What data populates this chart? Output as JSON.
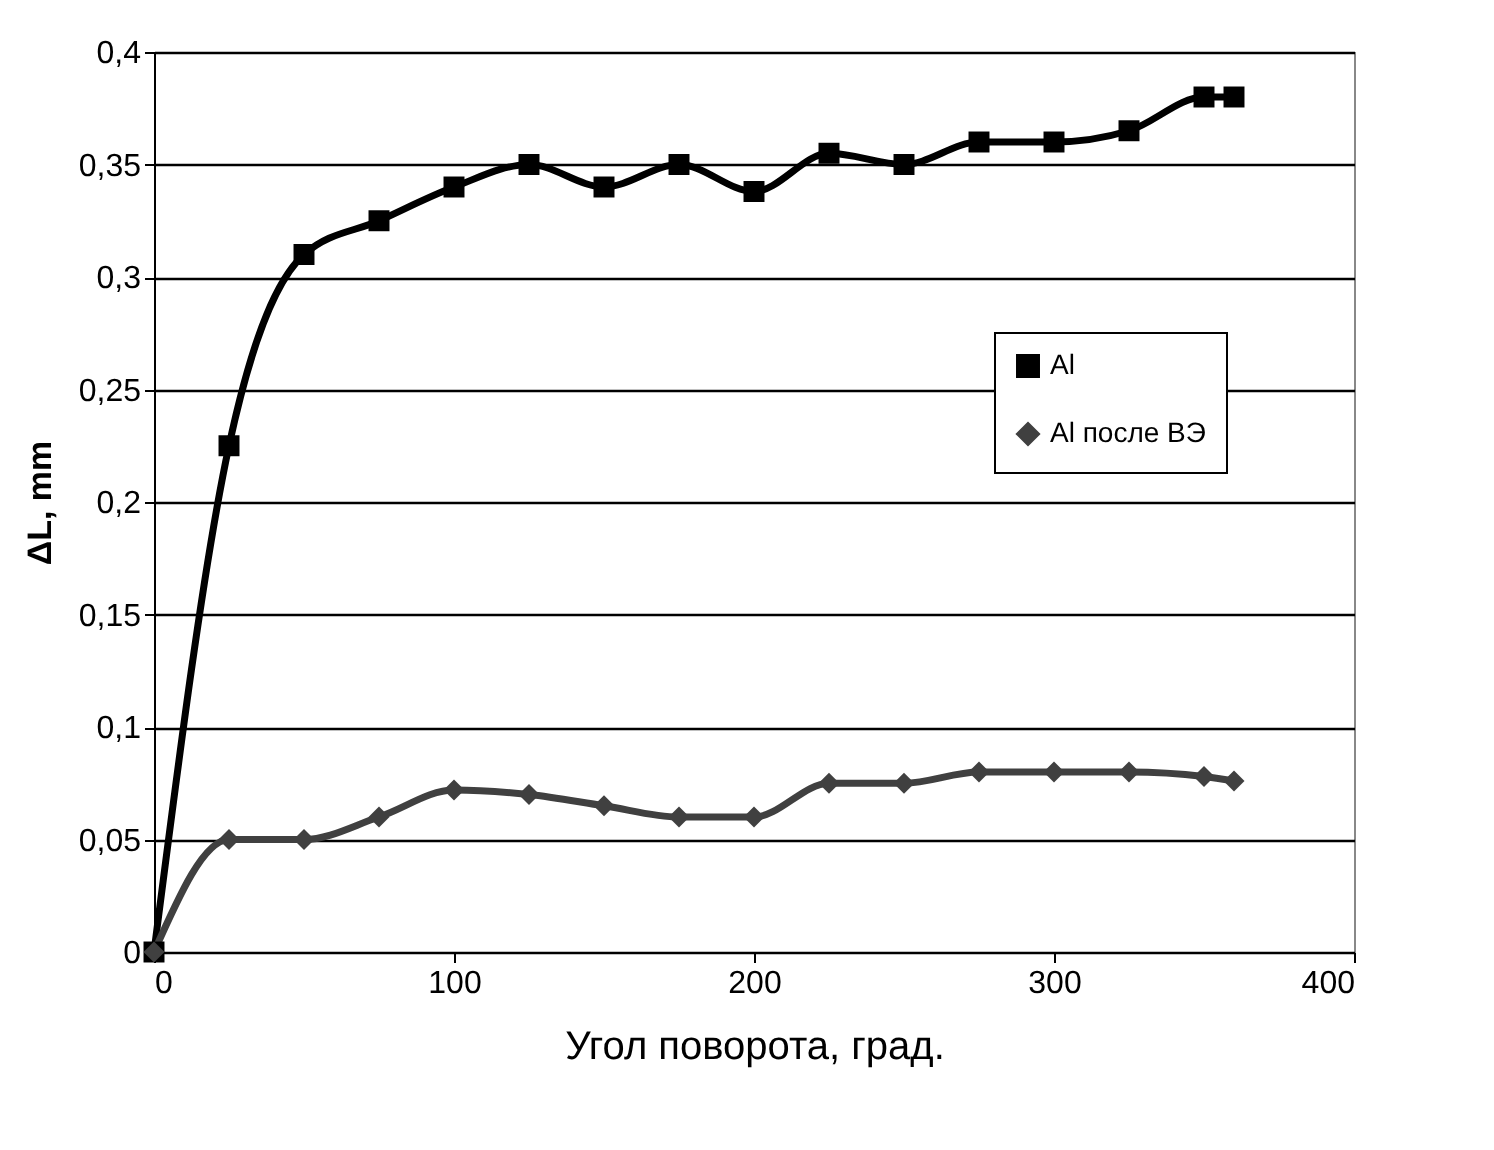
{
  "chart_data": {
    "type": "line",
    "xlabel": "Угол поворота, град.",
    "ylabel": "ΔL, mm",
    "xlim": [
      0,
      400
    ],
    "xticks": [
      0,
      100,
      200,
      300,
      400
    ],
    "ylim": [
      0,
      0.4
    ],
    "yticks": [
      0,
      {
        "value": 0.05,
        "label": "0,05"
      },
      {
        "value": 0.1,
        "label": "0,1"
      },
      {
        "value": 0.15,
        "label": "0,15"
      },
      {
        "value": 0.2,
        "label": "0,2"
      },
      {
        "value": 0.25,
        "label": "0,25"
      },
      {
        "value": 0.3,
        "label": "0,3"
      },
      {
        "value": 0.35,
        "label": "0,35"
      },
      {
        "value": 0.4,
        "label": "0,4"
      }
    ],
    "grid": "y",
    "legend": "right",
    "x": [
      0,
      25,
      50,
      75,
      100,
      125,
      150,
      175,
      200,
      225,
      250,
      275,
      300,
      325,
      350,
      360
    ],
    "series": [
      {
        "name": "Al",
        "color": "#000000",
        "marker": "square",
        "values": [
          0,
          0.225,
          0.31,
          0.325,
          0.34,
          0.35,
          0.34,
          0.35,
          0.338,
          0.355,
          0.35,
          0.36,
          0.36,
          0.365,
          0.38,
          0.38
        ]
      },
      {
        "name": "Al после ВЭ",
        "color": "#404040",
        "marker": "diamond",
        "values": [
          0,
          0.05,
          0.05,
          0.06,
          0.072,
          0.07,
          0.065,
          0.06,
          0.06,
          0.075,
          0.075,
          0.08,
          0.08,
          0.08,
          0.078,
          0.076
        ]
      }
    ]
  }
}
